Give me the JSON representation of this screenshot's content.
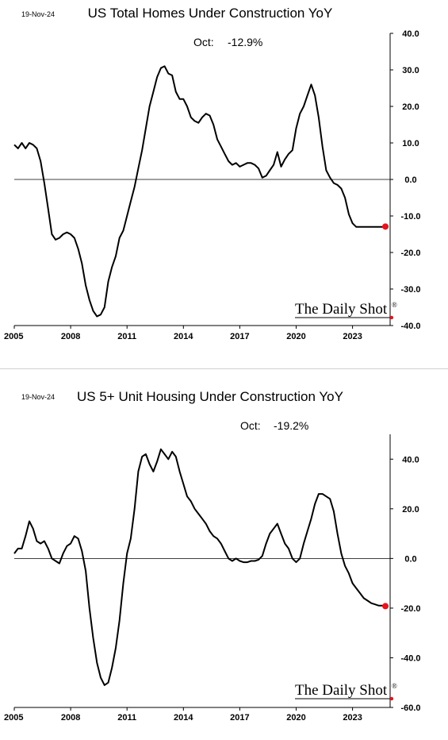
{
  "branding": {
    "text": "The Daily Shot",
    "mark": "®",
    "dot_color": "#e8141c"
  },
  "chart_data": [
    {
      "type": "line",
      "date": "19-Nov-24",
      "title": "US Total Homes Under Construction YoY",
      "annotation": {
        "label": "Oct:",
        "value": "-12.9%"
      },
      "ylim": [
        -40,
        40
      ],
      "yticks": [
        40,
        30,
        20,
        10,
        0,
        -10,
        -20,
        -30,
        -40
      ],
      "ytick_labels": [
        "40.0",
        "30.0",
        "20.0",
        "10.0",
        "0.0",
        "-10.0",
        "-20.0",
        "-30.0",
        "-40.0"
      ],
      "xlim": [
        2005.0,
        2025.0
      ],
      "xticks": [
        2005,
        2008,
        2011,
        2014,
        2017,
        2020,
        2023
      ],
      "xtick_labels": [
        "2005",
        "2008",
        "2011",
        "2014",
        "2017",
        "2020",
        "2023"
      ],
      "zero_line": true,
      "grid": false,
      "line_color": "#000000",
      "last_point_color": "#e8141c",
      "series": [
        {
          "x": [
            2005.0,
            2005.2,
            2005.4,
            2005.6,
            2005.8,
            2006.0,
            2006.2,
            2006.4,
            2006.6,
            2006.8,
            2007.0,
            2007.2,
            2007.4,
            2007.6,
            2007.8,
            2008.0,
            2008.2,
            2008.4,
            2008.6,
            2008.8,
            2009.0,
            2009.2,
            2009.4,
            2009.6,
            2009.8,
            2010.0,
            2010.2,
            2010.4,
            2010.6,
            2010.8,
            2011.0,
            2011.2,
            2011.4,
            2011.6,
            2011.8,
            2012.0,
            2012.2,
            2012.4,
            2012.6,
            2012.8,
            2013.0,
            2013.2,
            2013.4,
            2013.6,
            2013.8,
            2014.0,
            2014.2,
            2014.4,
            2014.6,
            2014.8,
            2015.0,
            2015.2,
            2015.4,
            2015.6,
            2015.8,
            2016.0,
            2016.2,
            2016.4,
            2016.6,
            2016.8,
            2017.0,
            2017.2,
            2017.4,
            2017.6,
            2017.8,
            2018.0,
            2018.2,
            2018.4,
            2018.6,
            2018.8,
            2019.0,
            2019.2,
            2019.4,
            2019.6,
            2019.8,
            2020.0,
            2020.2,
            2020.4,
            2020.6,
            2020.8,
            2021.0,
            2021.2,
            2021.4,
            2021.6,
            2021.8,
            2022.0,
            2022.2,
            2022.4,
            2022.6,
            2022.8,
            2023.0,
            2023.2,
            2023.4,
            2023.6,
            2023.8,
            2024.0,
            2024.2,
            2024.4,
            2024.6,
            2024.75
          ],
          "y": [
            9.5,
            8.5,
            10.0,
            8.5,
            10.0,
            9.5,
            8.5,
            5.0,
            -1.0,
            -8.0,
            -15.0,
            -16.5,
            -16.0,
            -15.0,
            -14.5,
            -15.0,
            -16.0,
            -19.0,
            -23.0,
            -29.0,
            -33.0,
            -36.0,
            -37.5,
            -37.0,
            -35.0,
            -28.0,
            -24.0,
            -21.0,
            -16.0,
            -14.0,
            -10.0,
            -6.0,
            -2.0,
            3.0,
            8.0,
            14.0,
            20.0,
            24.0,
            28.0,
            30.5,
            31.0,
            29.0,
            28.5,
            24.0,
            22.0,
            22.0,
            20.0,
            17.0,
            16.0,
            15.5,
            17.0,
            18.0,
            17.5,
            15.0,
            11.0,
            9.0,
            7.0,
            5.0,
            4.0,
            4.5,
            3.5,
            4.0,
            4.5,
            4.5,
            4.0,
            3.0,
            0.5,
            1.0,
            2.5,
            4.0,
            7.5,
            3.5,
            5.5,
            7.0,
            8.0,
            14.0,
            18.0,
            20.0,
            23.0,
            26.0,
            23.0,
            17.0,
            9.0,
            2.5,
            0.5,
            -1.0,
            -1.5,
            -2.5,
            -5.0,
            -9.5,
            -12.0,
            -13.0,
            -13.0,
            -13.0,
            -13.0,
            -13.0,
            -13.0,
            -13.0,
            -13.0,
            -12.9
          ]
        }
      ]
    },
    {
      "type": "line",
      "date": "19-Nov-24",
      "title": "US 5+ Unit Housing Under Construction YoY",
      "annotation": {
        "label": "Oct:",
        "value": "-19.2%"
      },
      "ylim": [
        -60,
        50
      ],
      "yticks": [
        40,
        20,
        0,
        -20,
        -40,
        -60
      ],
      "ytick_labels": [
        "40.0",
        "20.0",
        "0.0",
        "-20.0",
        "-40.0",
        "-60.0"
      ],
      "xlim": [
        2005.0,
        2025.0
      ],
      "xticks": [
        2005,
        2008,
        2011,
        2014,
        2017,
        2020,
        2023
      ],
      "xtick_labels": [
        "2005",
        "2008",
        "2011",
        "2014",
        "2017",
        "2020",
        "2023"
      ],
      "zero_line": true,
      "grid": false,
      "line_color": "#000000",
      "last_point_color": "#e8141c",
      "series": [
        {
          "x": [
            2005.0,
            2005.2,
            2005.4,
            2005.6,
            2005.8,
            2006.0,
            2006.2,
            2006.4,
            2006.6,
            2006.8,
            2007.0,
            2007.2,
            2007.4,
            2007.6,
            2007.8,
            2008.0,
            2008.2,
            2008.4,
            2008.6,
            2008.8,
            2009.0,
            2009.2,
            2009.4,
            2009.6,
            2009.8,
            2010.0,
            2010.2,
            2010.4,
            2010.6,
            2010.8,
            2011.0,
            2011.2,
            2011.4,
            2011.6,
            2011.8,
            2012.0,
            2012.2,
            2012.4,
            2012.6,
            2012.8,
            2013.0,
            2013.2,
            2013.4,
            2013.6,
            2013.8,
            2014.0,
            2014.2,
            2014.4,
            2014.6,
            2014.8,
            2015.0,
            2015.2,
            2015.4,
            2015.6,
            2015.8,
            2016.0,
            2016.2,
            2016.4,
            2016.6,
            2016.8,
            2017.0,
            2017.2,
            2017.4,
            2017.6,
            2017.8,
            2018.0,
            2018.2,
            2018.4,
            2018.6,
            2018.8,
            2019.0,
            2019.2,
            2019.4,
            2019.6,
            2019.8,
            2020.0,
            2020.2,
            2020.4,
            2020.6,
            2020.8,
            2021.0,
            2021.2,
            2021.4,
            2021.6,
            2021.8,
            2022.0,
            2022.2,
            2022.4,
            2022.6,
            2022.8,
            2023.0,
            2023.2,
            2023.4,
            2023.6,
            2023.8,
            2024.0,
            2024.2,
            2024.4,
            2024.6,
            2024.75
          ],
          "y": [
            2.0,
            4.0,
            4.0,
            9.0,
            15.0,
            12.0,
            7.0,
            6.0,
            7.0,
            4.0,
            0.0,
            -1.0,
            -2.0,
            2.0,
            5.0,
            6.0,
            9.0,
            8.0,
            3.0,
            -5.0,
            -20.0,
            -32.0,
            -42.0,
            -48.0,
            -51.0,
            -50.0,
            -44.0,
            -36.0,
            -25.0,
            -10.0,
            2.0,
            8.0,
            20.0,
            35.0,
            41.0,
            42.0,
            38.0,
            35.0,
            39.0,
            44.0,
            42.0,
            40.0,
            43.0,
            41.0,
            35.0,
            30.0,
            25.0,
            23.0,
            20.0,
            18.0,
            16.0,
            14.0,
            11.0,
            9.0,
            8.0,
            6.0,
            3.0,
            0.0,
            -1.0,
            0.0,
            -1.0,
            -1.5,
            -1.5,
            -1.0,
            -1.0,
            -0.5,
            1.0,
            6.0,
            10.0,
            12.0,
            14.0,
            10.0,
            6.0,
            4.0,
            0.0,
            -1.5,
            0.0,
            6.0,
            11.0,
            16.0,
            22.0,
            26.0,
            26.0,
            25.0,
            24.0,
            19.0,
            10.0,
            2.0,
            -3.0,
            -6.0,
            -10.0,
            -12.0,
            -14.0,
            -16.0,
            -17.0,
            -18.0,
            -18.5,
            -19.0,
            -19.0,
            -19.2
          ]
        }
      ]
    }
  ]
}
